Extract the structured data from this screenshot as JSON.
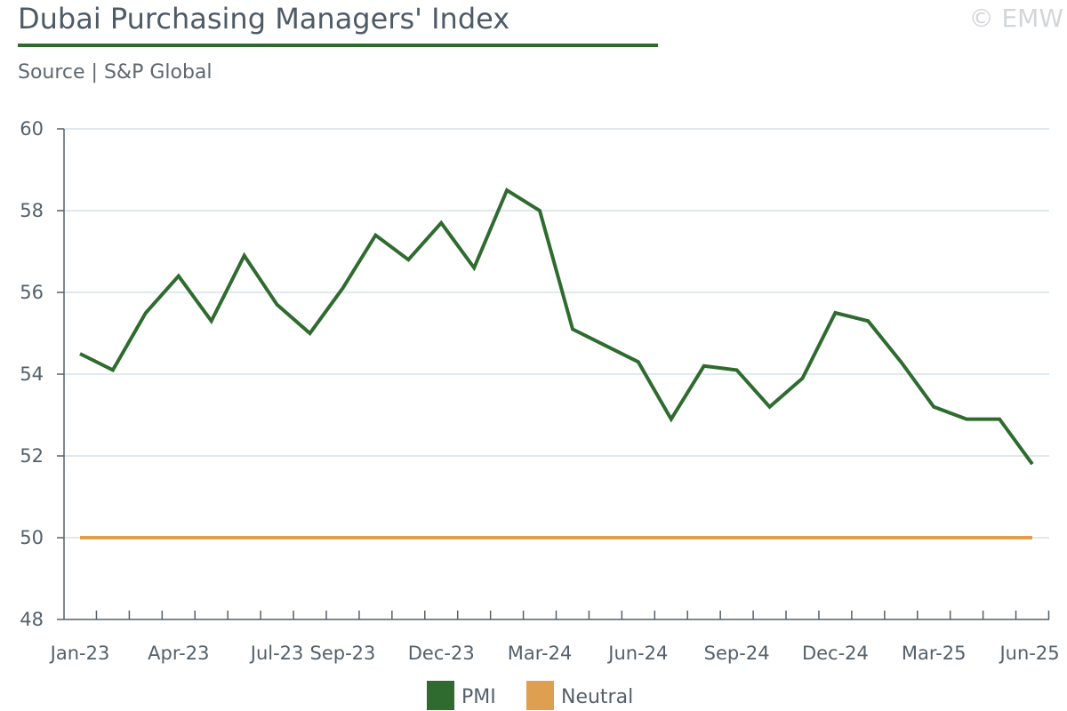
{
  "header": {
    "title": "Dubai Purchasing Managers' Index",
    "subtitle": "Source | S&P Global",
    "copyright": "© EMW"
  },
  "colors": {
    "pmi": "#2f6b2f",
    "neutral": "#dea050",
    "grid": "#d6e2ec",
    "axis": "#55606b",
    "title_rule": "#2f6b2f"
  },
  "chart_data": {
    "type": "line",
    "title": "Dubai Purchasing Managers' Index",
    "subtitle": "Source | S&P Global",
    "xlabel": "",
    "ylabel": "",
    "ylim": [
      48,
      60
    ],
    "yticks": [
      48,
      50,
      52,
      54,
      56,
      58,
      60
    ],
    "grid": true,
    "legend_position": "bottom-center",
    "x": [
      "Jan-23",
      "Feb-23",
      "Mar-23",
      "Apr-23",
      "May-23",
      "Jun-23",
      "Jul-23",
      "Aug-23",
      "Sep-23",
      "Oct-23",
      "Nov-23",
      "Dec-23",
      "Jan-24",
      "Feb-24",
      "Mar-24",
      "Apr-24",
      "May-24",
      "Jun-24",
      "Jul-24",
      "Aug-24",
      "Sep-24",
      "Oct-24",
      "Nov-24",
      "Dec-24",
      "Jan-25",
      "Feb-25",
      "Mar-25",
      "Apr-25",
      "May-25",
      "Jun-25"
    ],
    "xtick_labels": [
      {
        "index": 0,
        "label": "Jan-23"
      },
      {
        "index": 3,
        "label": "Apr-23"
      },
      {
        "index": 6,
        "label": "Jul-23"
      },
      {
        "index": 8,
        "label": "Sep-23"
      },
      {
        "index": 11,
        "label": "Dec-23"
      },
      {
        "index": 14,
        "label": "Mar-24"
      },
      {
        "index": 17,
        "label": "Jun-24"
      },
      {
        "index": 20,
        "label": "Sep-24"
      },
      {
        "index": 23,
        "label": "Dec-24"
      },
      {
        "index": 26,
        "label": "Mar-25"
      },
      {
        "index": 29,
        "label": "Jun-25"
      }
    ],
    "series": [
      {
        "name": "PMI",
        "color": "#2f6b2f",
        "values": [
          54.5,
          54.1,
          55.5,
          56.4,
          55.3,
          56.9,
          55.7,
          55.0,
          56.1,
          57.4,
          56.8,
          57.7,
          56.6,
          58.5,
          58.0,
          55.1,
          54.7,
          54.3,
          52.9,
          54.2,
          54.1,
          53.2,
          53.9,
          55.5,
          55.3,
          54.3,
          53.2,
          52.9,
          52.9,
          51.8
        ]
      },
      {
        "name": "Neutral",
        "color": "#dea050",
        "values": [
          50,
          50,
          50,
          50,
          50,
          50,
          50,
          50,
          50,
          50,
          50,
          50,
          50,
          50,
          50,
          50,
          50,
          50,
          50,
          50,
          50,
          50,
          50,
          50,
          50,
          50,
          50,
          50,
          50,
          50
        ]
      }
    ]
  }
}
